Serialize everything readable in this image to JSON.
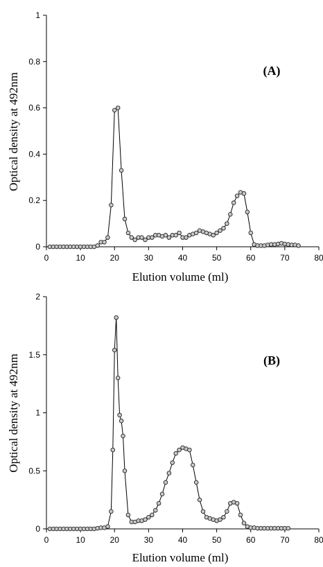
{
  "chart_data": [
    {
      "type": "line",
      "panel_label": "(A)",
      "xlabel": "Elution volume (ml)",
      "ylabel": "Optical density at 492nm",
      "xlim": [
        0,
        80
      ],
      "ylim": [
        0,
        1
      ],
      "x_ticks": [
        "0",
        "10",
        "20",
        "30",
        "40",
        "50",
        "60",
        "70",
        "80"
      ],
      "y_ticks": [
        "0",
        "0.2",
        "0.4",
        "0.6",
        "0.8",
        "1"
      ],
      "grid": false,
      "marker": "open-circle",
      "x": [
        1,
        2,
        3,
        4,
        5,
        6,
        7,
        8,
        9,
        10,
        11,
        12,
        13,
        14,
        15,
        16,
        17,
        18,
        19,
        20,
        21,
        22,
        23,
        24,
        25,
        26,
        27,
        28,
        29,
        30,
        31,
        32,
        33,
        34,
        35,
        36,
        37,
        38,
        39,
        40,
        41,
        42,
        43,
        44,
        45,
        46,
        47,
        48,
        49,
        50,
        51,
        52,
        53,
        54,
        55,
        56,
        57,
        58,
        59,
        60,
        61,
        62,
        63,
        64,
        65,
        66,
        67,
        68,
        69,
        70,
        71,
        72,
        73,
        74
      ],
      "y": [
        0,
        0,
        0,
        0,
        0,
        0,
        0,
        0,
        0,
        0,
        0,
        0,
        0,
        0,
        0.005,
        0.02,
        0.02,
        0.04,
        0.18,
        0.59,
        0.6,
        0.33,
        0.12,
        0.06,
        0.04,
        0.03,
        0.04,
        0.04,
        0.03,
        0.04,
        0.04,
        0.05,
        0.05,
        0.045,
        0.05,
        0.04,
        0.05,
        0.05,
        0.06,
        0.04,
        0.04,
        0.05,
        0.055,
        0.06,
        0.07,
        0.065,
        0.06,
        0.055,
        0.05,
        0.06,
        0.07,
        0.08,
        0.1,
        0.14,
        0.19,
        0.22,
        0.235,
        0.23,
        0.15,
        0.06,
        0.01,
        0.005,
        0.005,
        0.005,
        0.008,
        0.01,
        0.01,
        0.012,
        0.015,
        0.012,
        0.01,
        0.008,
        0.008,
        0.005
      ]
    },
    {
      "type": "line",
      "panel_label": "(B)",
      "xlabel": "Elution volume (ml)",
      "ylabel": "Optical density at 492nm",
      "xlim": [
        0,
        80
      ],
      "ylim": [
        0,
        2
      ],
      "x_ticks": [
        "0",
        "10",
        "20",
        "30",
        "40",
        "50",
        "60",
        "70",
        "80"
      ],
      "y_ticks": [
        "0",
        "0.5",
        "1",
        "1.5",
        "2"
      ],
      "grid": false,
      "marker": "open-circle",
      "x": [
        1,
        2,
        3,
        4,
        5,
        6,
        7,
        8,
        9,
        10,
        11,
        12,
        13,
        14,
        15,
        16,
        17,
        18,
        19,
        19.5,
        20,
        20.5,
        21,
        21.5,
        22,
        22.5,
        23,
        24,
        25,
        26,
        27,
        28,
        29,
        30,
        31,
        32,
        33,
        34,
        35,
        36,
        37,
        38,
        39,
        40,
        41,
        42,
        43,
        44,
        45,
        46,
        47,
        48,
        49,
        50,
        51,
        52,
        53,
        54,
        55,
        56,
        57,
        58,
        59,
        60,
        61,
        62,
        63,
        64,
        65,
        66,
        67,
        68,
        69,
        70,
        71
      ],
      "y": [
        0,
        0,
        0,
        0,
        0,
        0,
        0,
        0,
        0,
        0,
        0,
        0,
        0,
        0,
        0.005,
        0.01,
        0.01,
        0.02,
        0.15,
        0.68,
        1.54,
        1.82,
        1.3,
        0.98,
        0.93,
        0.8,
        0.5,
        0.12,
        0.06,
        0.06,
        0.07,
        0.07,
        0.08,
        0.1,
        0.12,
        0.16,
        0.22,
        0.3,
        0.4,
        0.48,
        0.57,
        0.65,
        0.68,
        0.7,
        0.69,
        0.68,
        0.55,
        0.4,
        0.25,
        0.15,
        0.1,
        0.09,
        0.08,
        0.07,
        0.08,
        0.1,
        0.15,
        0.22,
        0.23,
        0.22,
        0.12,
        0.05,
        0.02,
        0.01,
        0.01,
        0.005,
        0.005,
        0.005,
        0.005,
        0.005,
        0.005,
        0.005,
        0.005,
        0.005,
        0.005
      ]
    }
  ]
}
